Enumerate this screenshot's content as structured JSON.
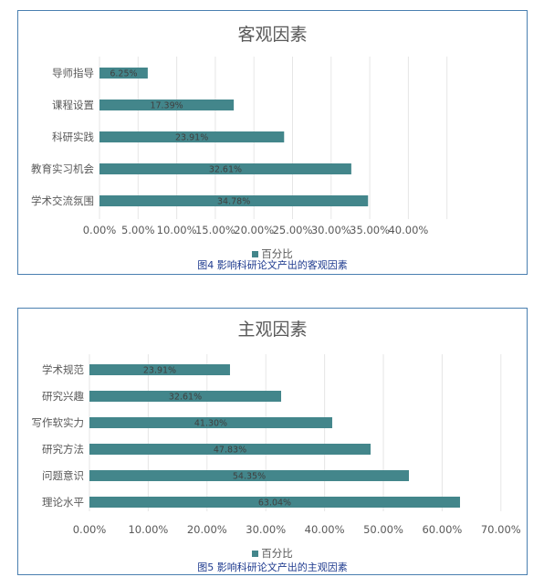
{
  "colors": {
    "bar": "#43868b",
    "grid": "#e6e6e6",
    "text": "#595959",
    "caption": "#1f3b8f",
    "frame": "#4a7fb0"
  },
  "chart_data": [
    {
      "type": "bar",
      "orientation": "horizontal",
      "title": "客观因素",
      "categories": [
        "导师指导",
        "课程设置",
        "科研实践",
        "教育实习机会",
        "学术交流氛围"
      ],
      "series": [
        {
          "name": "百分比",
          "values": [
            6.25,
            17.39,
            23.91,
            32.61,
            34.78
          ]
        }
      ],
      "data_labels": [
        "6.25%",
        "17.39%",
        "23.91%",
        "32.61%",
        "34.78%"
      ],
      "xlim": [
        0,
        45
      ],
      "xticks": [
        "0.00%",
        "5.00%",
        "10.00%",
        "15.00%",
        "20.00%",
        "25.00%",
        "30.00%",
        "35.00%",
        "40.00%"
      ],
      "grid": true,
      "legend": "bottom",
      "caption": "图4  影响科研论文产出的客观因素"
    },
    {
      "type": "bar",
      "orientation": "horizontal",
      "title": "主观因素",
      "categories": [
        "学术规范",
        "研究兴趣",
        "写作软实力",
        "研究方法",
        "问题意识",
        "理论水平"
      ],
      "series": [
        {
          "name": "百分比",
          "values": [
            23.91,
            32.61,
            41.3,
            47.83,
            54.35,
            63.04
          ]
        }
      ],
      "data_labels": [
        "23.91%",
        "32.61%",
        "41.30%",
        "47.83%",
        "54.35%",
        "63.04%"
      ],
      "xlim": [
        0,
        70
      ],
      "xticks": [
        "0.00%",
        "10.00%",
        "20.00%",
        "30.00%",
        "40.00%",
        "50.00%",
        "60.00%",
        "70.00%"
      ],
      "grid": true,
      "legend": "bottom",
      "caption": "图5  影响科研论文产出的主观因素"
    }
  ]
}
